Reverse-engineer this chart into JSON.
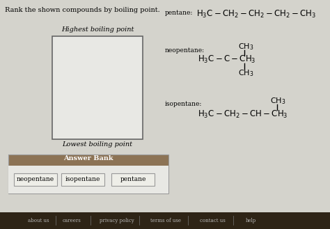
{
  "title": "Rank the shown compounds by boiling point.",
  "bg_color": "#d4d3cc",
  "box_label_top": "Highest boiling point",
  "box_label_bottom": "Lowest boiling point",
  "answer_bank_label": "Answer Bank",
  "answer_bank_bg": "#8c7355",
  "answer_bank_label_color": "#ffffff",
  "answer_items": [
    "neopentane",
    "isopentane",
    "pentane"
  ],
  "footer_links": [
    "about us",
    "careers",
    "privacy policy",
    "terms of use",
    "contact us",
    "help"
  ],
  "footer_bg": "#3a2e22"
}
